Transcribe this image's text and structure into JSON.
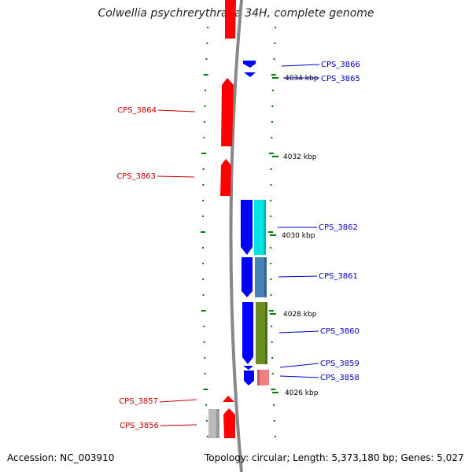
{
  "title": "Colwellia psychrerythraea 34H, complete genome",
  "footer": {
    "accession": "Accession: NC_003910",
    "topology": "Topology: circular; Length: 5,373,180 bp; Genes: 5,027"
  },
  "colors": {
    "forward_strand": "#ff0000",
    "reverse_strand": "#0000ff",
    "pseudo_gene": "#bbbbbb",
    "backbone": "#888888",
    "ticks": "#008000",
    "cog_cyan": "#00e5e5",
    "cog_steelblue": "#4682b4",
    "cog_olive": "#6b8e23",
    "cog_salmon": "#f08080"
  },
  "scale_ticks": [
    {
      "label": "4034 kbp"
    },
    {
      "label": "4032 kbp"
    },
    {
      "label": "4030 kbp"
    },
    {
      "label": "4028 kbp"
    },
    {
      "label": "4026 kbp"
    }
  ],
  "genes": [
    {
      "label": "CPS_3866",
      "strand": "reverse"
    },
    {
      "label": "CPS_3865",
      "strand": "reverse"
    },
    {
      "label": "CPS_3864",
      "strand": "forward"
    },
    {
      "label": "CPS_3863",
      "strand": "forward"
    },
    {
      "label": "CPS_3862",
      "strand": "reverse"
    },
    {
      "label": "CPS_3861",
      "strand": "reverse"
    },
    {
      "label": "CPS_3860",
      "strand": "reverse"
    },
    {
      "label": "CPS_3859",
      "strand": "reverse"
    },
    {
      "label": "CPS_3858",
      "strand": "reverse"
    },
    {
      "label": "CPS_3857",
      "strand": "forward"
    },
    {
      "label": "CPS_3856",
      "strand": "forward"
    }
  ]
}
